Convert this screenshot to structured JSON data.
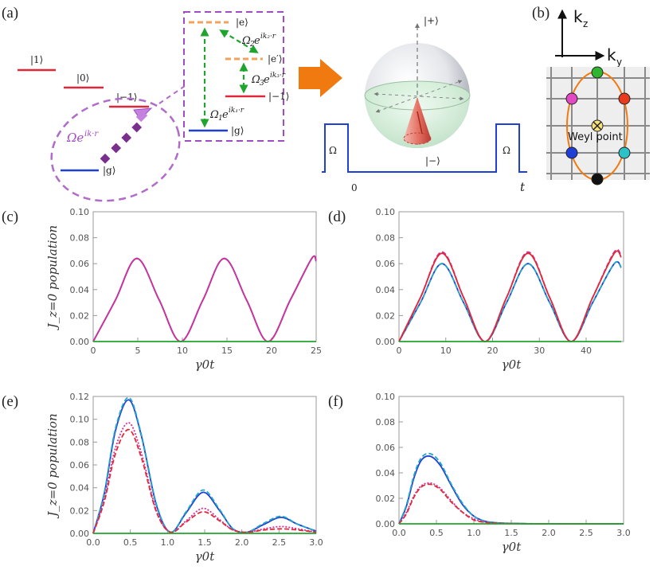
{
  "figure": {
    "labels": {
      "a": "(a)",
      "b": "(b)",
      "c": "(c)",
      "d": "(d)",
      "e": "(e)",
      "f": "(f)"
    },
    "level_diagram": {
      "levels": [
        "|1⟩",
        "|0⟩",
        "|−1⟩",
        "|g⟩"
      ],
      "drive_label": "Ωe",
      "drive_exp": "ik·r"
    },
    "inset": {
      "levels": [
        "|e⟩",
        "|e′⟩",
        "|−1⟩",
        "|g⟩"
      ],
      "couplings": [
        {
          "base": "Ω",
          "sub": "2",
          "exp": "ik₂·r"
        },
        {
          "base": "Ω",
          "sub": "3",
          "exp": "ik₃·r"
        },
        {
          "base": "Ω",
          "sub": "1",
          "exp": "ik₁·r"
        }
      ]
    },
    "bloch": {
      "top": "|+⟩",
      "bottom": "|−⟩"
    },
    "pulse": {
      "label_left": "Ω",
      "label_right": "Ω",
      "t0": "0",
      "t1": "t"
    },
    "momentum": {
      "kz": "k",
      "kz_sub": "z",
      "ky": "k",
      "ky_sub": "y",
      "weyl": "Weyl point"
    },
    "colors": {
      "blue": "#1f3fd6",
      "cyan": "#22a7c4",
      "magenta": "#d62d9a",
      "red": "#e0283a",
      "green": "#1fa52e",
      "orange": "#f07a10",
      "purple": "#a14bc4",
      "dashed_orange": "#f2a25a"
    }
  },
  "chart_data": [
    {
      "panel": "(c)",
      "type": "line",
      "ylabel": "J_z=0 population",
      "xlabel": "γ0t",
      "xlim": [
        0,
        25
      ],
      "ylim": [
        0,
        0.1
      ],
      "xticks": [
        "0",
        "5",
        "10",
        "15",
        "20",
        "25"
      ],
      "yticks": [
        "0.00",
        "0.02",
        "0.04",
        "0.06",
        "0.08",
        "0.10"
      ],
      "series": [
        {
          "color": "#1f3fd6",
          "style": "solid",
          "x": [
            0,
            2.5,
            4.9,
            7.4,
            9.8,
            12.3,
            14.7,
            17.2,
            19.6,
            22.1,
            24.5,
            25
          ],
          "y": [
            0,
            0.032,
            0.064,
            0.032,
            0,
            0.032,
            0.064,
            0.032,
            0,
            0.032,
            0.064,
            0.062
          ]
        },
        {
          "color": "#22a7c4",
          "style": "dashed",
          "x": [
            0,
            2.5,
            4.9,
            7.4,
            9.8,
            12.3,
            14.7,
            17.2,
            19.6,
            22.1,
            24.5,
            25
          ],
          "y": [
            0,
            0.032,
            0.064,
            0.032,
            0,
            0.032,
            0.064,
            0.032,
            0,
            0.032,
            0.064,
            0.061
          ]
        },
        {
          "color": "#d62d9a",
          "style": "solid",
          "x": [
            0,
            2.5,
            4.9,
            7.4,
            9.8,
            12.3,
            14.7,
            17.2,
            19.6,
            22.1,
            24.5,
            25
          ],
          "y": [
            0,
            0.032,
            0.064,
            0.032,
            0,
            0.032,
            0.064,
            0.032,
            0,
            0.032,
            0.064,
            0.062
          ]
        },
        {
          "color": "#1fa52e",
          "style": "solid",
          "x": [
            0,
            25
          ],
          "y": [
            0,
            0
          ]
        }
      ]
    },
    {
      "panel": "(d)",
      "type": "line",
      "ylabel": "",
      "xlabel": "γ0t",
      "xlim": [
        0,
        48
      ],
      "ylim": [
        0,
        0.1
      ],
      "xticks": [
        "0",
        "10",
        "20",
        "30",
        "40"
      ],
      "yticks": [
        "0.00",
        "0.02",
        "0.04",
        "0.06",
        "0.08",
        "0.10"
      ],
      "series": [
        {
          "color": "#1f3fd6",
          "style": "solid",
          "x": [
            0,
            4.6,
            9.2,
            13.8,
            18.4,
            23,
            27.6,
            32.2,
            36.8,
            41.4,
            46,
            47.5
          ],
          "y": [
            0,
            0.03,
            0.06,
            0.03,
            0,
            0.03,
            0.06,
            0.03,
            0,
            0.03,
            0.06,
            0.057
          ]
        },
        {
          "color": "#22a7c4",
          "style": "dashed",
          "x": [
            0,
            4.6,
            9.2,
            13.8,
            18.4,
            23,
            27.6,
            32.2,
            36.8,
            41.4,
            46,
            47.5
          ],
          "y": [
            0,
            0.03,
            0.06,
            0.03,
            0,
            0.03,
            0.06,
            0.03,
            0,
            0.03,
            0.06,
            0.057
          ]
        },
        {
          "color": "#d62d9a",
          "style": "dashed",
          "x": [
            0,
            4.6,
            9.2,
            13.8,
            18.4,
            23,
            27.6,
            32.2,
            36.8,
            41.4,
            46,
            47.5
          ],
          "y": [
            0,
            0.034,
            0.069,
            0.034,
            0,
            0.034,
            0.069,
            0.034,
            0,
            0.034,
            0.069,
            0.066
          ]
        },
        {
          "color": "#e0283a",
          "style": "solid",
          "x": [
            0,
            4.6,
            9.2,
            13.8,
            18.4,
            23,
            27.6,
            32.2,
            36.8,
            41.4,
            46,
            47.5
          ],
          "y": [
            0,
            0.034,
            0.068,
            0.034,
            0,
            0.034,
            0.068,
            0.034,
            0,
            0.034,
            0.068,
            0.065
          ]
        },
        {
          "color": "#1fa52e",
          "style": "solid",
          "x": [
            0,
            47.5
          ],
          "y": [
            0,
            0
          ]
        }
      ]
    },
    {
      "panel": "(e)",
      "type": "line",
      "ylabel": "J_z=0 population",
      "xlabel": "γ0t",
      "xlim": [
        0,
        3
      ],
      "ylim": [
        0,
        0.12
      ],
      "xticks": [
        "0.0",
        "0.5",
        "1.0",
        "1.5",
        "2.0",
        "2.5",
        "3.0"
      ],
      "yticks": [
        "0.00",
        "0.02",
        "0.04",
        "0.06",
        "0.08",
        "0.10",
        "0.12"
      ],
      "series": [
        {
          "color": "#1f3fd6",
          "style": "solid",
          "x": [
            0,
            0.15,
            0.3,
            0.48,
            0.65,
            0.85,
            1.04,
            1.25,
            1.48,
            1.7,
            1.88,
            2.07,
            2.3,
            2.53,
            2.75,
            3.0
          ],
          "y": [
            0,
            0.035,
            0.09,
            0.117,
            0.085,
            0.025,
            0.001,
            0.018,
            0.036,
            0.02,
            0.004,
            0.001,
            0.008,
            0.014,
            0.008,
            0.002
          ]
        },
        {
          "color": "#22a7c4",
          "style": "dashed",
          "x": [
            0,
            0.15,
            0.3,
            0.48,
            0.65,
            0.85,
            1.04,
            1.25,
            1.48,
            1.7,
            1.88,
            2.07,
            2.3,
            2.53,
            2.75,
            3.0
          ],
          "y": [
            0,
            0.036,
            0.092,
            0.119,
            0.086,
            0.026,
            0.001,
            0.019,
            0.038,
            0.021,
            0.004,
            0.001,
            0.009,
            0.015,
            0.008,
            0.002
          ]
        },
        {
          "color": "#d62d9a",
          "style": "dotted",
          "x": [
            0,
            0.15,
            0.3,
            0.48,
            0.65,
            0.85,
            1.04,
            1.25,
            1.48,
            1.7,
            1.88,
            2.07,
            2.3,
            2.53,
            2.75,
            3.0
          ],
          "y": [
            0,
            0.03,
            0.075,
            0.097,
            0.07,
            0.02,
            0.001,
            0.011,
            0.022,
            0.012,
            0.003,
            0.001,
            0.004,
            0.006,
            0.004,
            0.001
          ]
        },
        {
          "color": "#e0283a",
          "style": "dashed",
          "x": [
            0,
            0.15,
            0.3,
            0.48,
            0.65,
            0.85,
            1.04,
            1.25,
            1.48,
            1.7,
            1.88,
            2.07,
            2.3,
            2.53,
            2.75,
            3.0
          ],
          "y": [
            0,
            0.028,
            0.07,
            0.091,
            0.066,
            0.019,
            0.001,
            0.01,
            0.019,
            0.011,
            0.003,
            0.001,
            0.003,
            0.004,
            0.003,
            0.001
          ]
        },
        {
          "color": "#1fa52e",
          "style": "solid",
          "x": [
            0,
            3
          ],
          "y": [
            0,
            0
          ]
        }
      ]
    },
    {
      "panel": "(f)",
      "type": "line",
      "ylabel": "",
      "xlabel": "γ0t",
      "xlim": [
        0,
        3
      ],
      "ylim": [
        0,
        0.1
      ],
      "xticks": [
        "0.0",
        "0.5",
        "1.0",
        "1.5",
        "2.0",
        "2.5",
        "3.0"
      ],
      "yticks": [
        "0.00",
        "0.02",
        "0.04",
        "0.06",
        "0.08",
        "0.10"
      ],
      "series": [
        {
          "color": "#1f3fd6",
          "style": "solid",
          "x": [
            0,
            0.1,
            0.2,
            0.3,
            0.42,
            0.55,
            0.7,
            0.85,
            1.0,
            1.15,
            1.3,
            1.5,
            2.0,
            3.0
          ],
          "y": [
            0,
            0.014,
            0.036,
            0.05,
            0.053,
            0.046,
            0.03,
            0.015,
            0.006,
            0.002,
            0.0008,
            0.0003,
            0,
            0
          ]
        },
        {
          "color": "#22a7c4",
          "style": "dashed",
          "x": [
            0,
            0.1,
            0.2,
            0.3,
            0.42,
            0.55,
            0.7,
            0.85,
            1.0,
            1.15,
            1.3,
            1.5,
            2.0,
            3.0
          ],
          "y": [
            0,
            0.015,
            0.038,
            0.052,
            0.055,
            0.048,
            0.031,
            0.016,
            0.006,
            0.002,
            0.0008,
            0.0003,
            0,
            0
          ]
        },
        {
          "color": "#d62d9a",
          "style": "dotted",
          "x": [
            0,
            0.1,
            0.2,
            0.3,
            0.42,
            0.55,
            0.7,
            0.85,
            1.0,
            1.15,
            1.3,
            1.5,
            2.0,
            3.0
          ],
          "y": [
            0,
            0.009,
            0.022,
            0.03,
            0.032,
            0.028,
            0.018,
            0.009,
            0.004,
            0.0013,
            0.0005,
            0.0002,
            0,
            0
          ]
        },
        {
          "color": "#e0283a",
          "style": "dashed",
          "x": [
            0,
            0.1,
            0.2,
            0.3,
            0.42,
            0.55,
            0.7,
            0.85,
            1.0,
            1.15,
            1.3,
            1.5,
            2.0,
            3.0
          ],
          "y": [
            0,
            0.008,
            0.021,
            0.029,
            0.031,
            0.027,
            0.017,
            0.009,
            0.003,
            0.0012,
            0.0005,
            0.0002,
            0,
            0
          ]
        },
        {
          "color": "#1fa52e",
          "style": "solid",
          "x": [
            0,
            3
          ],
          "y": [
            0,
            0
          ]
        }
      ]
    }
  ]
}
